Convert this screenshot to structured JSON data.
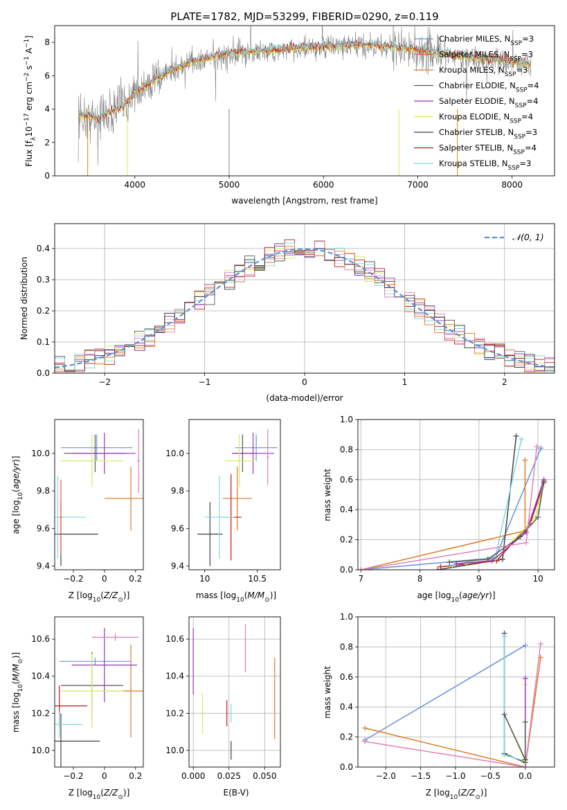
{
  "figure": {
    "title": "PLATE=1782, MJD=53299, FIBERID=0290, z=0.119"
  },
  "colors": {
    "Chabrier MILES": "#6a8fd8",
    "Salpeter MILES": "#e06040",
    "Kroupa MILES": "#e07b20",
    "Chabrier ELODIE": "#555555",
    "Salpeter ELODIE": "#9b30c0",
    "Kroupa ELODIE": "#d4e860",
    "Chabrier STELIB": "#404040",
    "Salpeter STELIB": "#c01818",
    "Kroupa STELIB": "#7fd8e0",
    "pink": "#e080b8",
    "data": "#808080",
    "normal": "#5b8fd8"
  },
  "chart_data": [
    {
      "type": "line",
      "title": "PLATE=1782, MJD=53299, FIBERID=0290, z=0.119",
      "xlabel": "wavelength [Angstrom, rest frame]",
      "ylabel": "Flux [f_λ 10^-17 erg cm^-2 s^-1 A^-1]",
      "xlim": [
        3150,
        8450
      ],
      "ylim": [
        0,
        9
      ],
      "xticks": [
        4000,
        5000,
        6000,
        7000,
        8000
      ],
      "yticks": [
        0,
        2,
        4,
        6,
        8
      ],
      "legend_position": "right",
      "legend": [
        {
          "label": "Chabrier MILES",
          "sub": "SSP",
          "n": "=3"
        },
        {
          "label": "Salpeter MILES",
          "sub": "SSP",
          "n": "=3"
        },
        {
          "label": "Kroupa MILES",
          "sub": "SSP",
          "n": "=3"
        },
        {
          "label": "Chabrier ELODIE",
          "sub": "SSP",
          "n": "=4"
        },
        {
          "label": "Salpeter ELODIE",
          "sub": "SSP",
          "n": "=4"
        },
        {
          "label": "Kroupa ELODIE",
          "sub": "SSP",
          "n": "=4"
        },
        {
          "label": "Chabrier STELIB",
          "sub": "SSP",
          "n": "=3"
        },
        {
          "label": "Salpeter STELIB",
          "sub": "SSP",
          "n": "=4"
        },
        {
          "label": "Kroupa STELIB",
          "sub": "SSP",
          "n": "=3"
        }
      ],
      "spectrum_continuum": [
        [
          3400,
          3.6
        ],
        [
          3600,
          3.4
        ],
        [
          3900,
          4.2
        ],
        [
          4000,
          5.0
        ],
        [
          4300,
          6.0
        ],
        [
          4600,
          6.8
        ],
        [
          5000,
          7.3
        ],
        [
          5500,
          7.5
        ],
        [
          6000,
          7.7
        ],
        [
          6500,
          7.8
        ],
        [
          7000,
          7.5
        ],
        [
          7500,
          7.1
        ],
        [
          8000,
          6.8
        ],
        [
          8200,
          6.7
        ]
      ]
    },
    {
      "type": "bar",
      "xlabel": "(data-model)/error",
      "ylabel": "Normed distribution",
      "xlim": [
        -2.5,
        2.5
      ],
      "ylim": [
        0,
        0.48
      ],
      "xticks": [
        -2,
        -1,
        0,
        1,
        2
      ],
      "yticks": [
        0.0,
        0.1,
        0.2,
        0.3,
        0.4
      ],
      "legend": "𝒩(0, 1)",
      "legend_position": "top-right",
      "bin_width": 0.1
    },
    {
      "type": "scatter",
      "xlabel": "Z [log₁₀(Z/Z⊙)]",
      "ylabel": "age  [log₁₀(age/yr)]",
      "xlim": [
        -0.32,
        0.25
      ],
      "ylim": [
        9.38,
        10.18
      ],
      "xticks": [
        -0.2,
        0.0,
        0.2
      ],
      "yticks": [
        9.4,
        9.6,
        9.8,
        10.0
      ],
      "points": [
        {
          "series": "Chabrier MILES",
          "x": -0.05,
          "y": 10.03,
          "xerr": 0.23,
          "yerr": 0.07
        },
        {
          "series": "Kroupa MILES",
          "x": 0.17,
          "y": 9.76,
          "xerr": 0.17,
          "yerr": 0.17
        },
        {
          "series": "Chabrier ELODIE",
          "x": -0.06,
          "y": 10.0,
          "xerr": 0.2,
          "yerr": 0.1
        },
        {
          "series": "Salpeter ELODIE",
          "x": 0.0,
          "y": 10.0,
          "xerr": 0.2,
          "yerr": 0.11
        },
        {
          "series": "Kroupa ELODIE",
          "x": -0.08,
          "y": 9.96,
          "xerr": 0.2,
          "yerr": 0.14
        },
        {
          "series": "Chabrier STELIB",
          "x": -0.28,
          "y": 9.57,
          "xerr": 0.24,
          "yerr": 0.17
        },
        {
          "series": "Kroupa STELIB",
          "x": -0.3,
          "y": 9.66,
          "xerr": 0.18,
          "yerr": 0.22
        },
        {
          "series": "pink",
          "x": 0.22,
          "y": 9.96,
          "xerr": 0.01,
          "yerr": 0.17
        },
        {
          "series": "Salpeter MILES",
          "x": -0.28,
          "y": 9.66,
          "xerr": 0.01,
          "yerr": 0.2
        }
      ]
    },
    {
      "type": "scatter",
      "xlabel": "mass [log₁₀(M/M⊙)]",
      "xlim": [
        9.85,
        10.72
      ],
      "ylim": [
        9.38,
        10.18
      ],
      "xticks": [
        10.0,
        10.5
      ],
      "yticks": [
        9.4,
        9.6,
        9.8,
        10.0
      ],
      "points": [
        {
          "series": "Chabrier MILES",
          "x": 10.49,
          "y": 10.03,
          "xerr": 0.2,
          "yerr": 0.07
        },
        {
          "series": "Kroupa MILES",
          "x": 10.31,
          "y": 9.76,
          "xerr": 0.14,
          "yerr": 0.17
        },
        {
          "series": "Chabrier ELODIE",
          "x": 10.36,
          "y": 10.0,
          "xerr": 0.1,
          "yerr": 0.1
        },
        {
          "series": "Salpeter ELODIE",
          "x": 10.46,
          "y": 10.0,
          "xerr": 0.2,
          "yerr": 0.11
        },
        {
          "series": "Kroupa ELODIE",
          "x": 10.33,
          "y": 9.96,
          "xerr": 0.14,
          "yerr": 0.14
        },
        {
          "series": "Chabrier STELIB",
          "x": 10.05,
          "y": 9.57,
          "xerr": 0.12,
          "yerr": 0.17
        },
        {
          "series": "Salpeter STELIB",
          "x": 10.25,
          "y": 9.66,
          "xerr": 0.1,
          "yerr": 0.23
        },
        {
          "series": "Kroupa STELIB",
          "x": 10.14,
          "y": 9.66,
          "xerr": 0.14,
          "yerr": 0.22
        },
        {
          "series": "pink",
          "x": 10.6,
          "y": 9.98,
          "xerr": 0.01,
          "yerr": 0.15
        }
      ]
    },
    {
      "type": "line",
      "xlabel": "age  [log₁₀(age/yr)]",
      "ylabel": "mass weight",
      "xlim": [
        6.95,
        10.28
      ],
      "ylim": [
        0,
        1.0
      ],
      "xticks": [
        7,
        8,
        9,
        10
      ],
      "yticks": [
        0.0,
        0.2,
        0.4,
        0.6,
        0.8,
        1.0
      ],
      "series": [
        {
          "name": "Chabrier MILES",
          "points": [
            [
              7.0,
              0.0
            ],
            [
              9.28,
              0.08
            ],
            [
              10.05,
              0.81
            ]
          ]
        },
        {
          "name": "Kroupa MILES",
          "points": [
            [
              7.0,
              0.0
            ],
            [
              9.78,
              0.26
            ],
            [
              9.78,
              0.73
            ]
          ]
        },
        {
          "name": "Chabrier STELIB",
          "points": [
            [
              8.3,
              0.0
            ],
            [
              9.4,
              0.07
            ],
            [
              9.63,
              0.89
            ]
          ]
        },
        {
          "name": "Salpeter STELIB",
          "points": [
            [
              8.35,
              0.02
            ],
            [
              9.3,
              0.06
            ],
            [
              9.87,
              0.31
            ],
            [
              10.1,
              0.58
            ]
          ]
        },
        {
          "name": "Kroupa STELIB",
          "points": [
            [
              8.55,
              0.03
            ],
            [
              9.28,
              0.09
            ],
            [
              9.72,
              0.87
            ]
          ]
        },
        {
          "name": "Kroupa ELODIE",
          "points": [
            [
              8.78,
              0.04
            ],
            [
              9.28,
              0.07
            ],
            [
              9.6,
              0.2
            ],
            [
              9.96,
              0.35
            ],
            [
              10.08,
              0.55
            ]
          ]
        },
        {
          "name": "Salpeter ELODIE",
          "points": [
            [
              8.62,
              0.04
            ],
            [
              9.22,
              0.06
            ],
            [
              9.8,
              0.25
            ],
            [
              10.1,
              0.6
            ]
          ]
        },
        {
          "name": "Chabrier ELODIE",
          "points": [
            [
              8.5,
              0.05
            ],
            [
              9.15,
              0.07
            ],
            [
              9.7,
              0.22
            ],
            [
              10.0,
              0.35
            ],
            [
              10.1,
              0.59
            ]
          ]
        },
        {
          "name": "pink",
          "points": [
            [
              7.0,
              0.0
            ],
            [
              9.8,
              0.18
            ],
            [
              9.98,
              0.82
            ]
          ]
        }
      ]
    },
    {
      "type": "scatter",
      "xlabel": "Z [log₁₀(Z/Z⊙)]",
      "ylabel": "mass [log₁₀(M/M⊙)]",
      "xlim": [
        -0.32,
        0.25
      ],
      "ylim": [
        9.91,
        10.72
      ],
      "xticks": [
        -0.2,
        0.0,
        0.2
      ],
      "yticks": [
        10.0,
        10.2,
        10.4,
        10.6
      ],
      "points": [
        {
          "series": "Chabrier MILES",
          "x": -0.06,
          "y": 10.48,
          "xerr": 0.23,
          "yerr": 0.02
        },
        {
          "series": "Kroupa MILES",
          "x": 0.17,
          "y": 10.32,
          "xerr": 0.15,
          "yerr": 0.25
        },
        {
          "series": "Chabrier ELODIE",
          "x": -0.08,
          "y": 10.35,
          "xerr": 0.2,
          "yerr": 0.18
        },
        {
          "series": "Salpeter ELODIE",
          "x": 0.0,
          "y": 10.46,
          "xerr": 0.21,
          "yerr": 0.2
        },
        {
          "series": "Kroupa ELODIE",
          "x": -0.08,
          "y": 10.32,
          "xerr": 0.2,
          "yerr": 0.2
        },
        {
          "series": "Chabrier STELIB",
          "x": -0.28,
          "y": 10.05,
          "xerr": 0.25,
          "yerr": 0.15
        },
        {
          "series": "Salpeter STELIB",
          "x": -0.29,
          "y": 10.24,
          "xerr": 0.18,
          "yerr": 0.11
        },
        {
          "series": "Kroupa STELIB",
          "x": -0.29,
          "y": 10.14,
          "xerr": 0.15,
          "yerr": 0.07
        },
        {
          "series": "pink",
          "x": 0.07,
          "y": 10.61,
          "xerr": 0.15,
          "yerr": 0.02
        }
      ]
    },
    {
      "type": "scatter",
      "xlabel": "E(B-V)",
      "xlim": [
        -0.003,
        0.061
      ],
      "ylim": [
        9.91,
        10.72
      ],
      "xticks": [
        0.0,
        0.025,
        0.05
      ],
      "xticklabels": [
        "0.000",
        "0.025",
        "0.050"
      ],
      "yticks": [
        10.0,
        10.2,
        10.4,
        10.6
      ],
      "points": [
        {
          "series": "Salpeter ELODIE",
          "x": 0.0,
          "y": 10.48,
          "yerr": 0.18
        },
        {
          "series": "Kroupa ELODIE",
          "x": 0.0065,
          "y": 10.2,
          "yerr": 0.11
        },
        {
          "series": "Salpeter STELIB",
          "x": 0.0235,
          "y": 10.2,
          "yerr": 0.07
        },
        {
          "series": "Chabrier STELIB",
          "x": 0.0265,
          "y": 10.0,
          "yerr": 0.05
        },
        {
          "series": "Kroupa STELIB",
          "x": 0.0265,
          "y": 10.2,
          "yerr": 0.05
        },
        {
          "series": "pink",
          "x": 0.0365,
          "y": 10.55,
          "yerr": 0.13
        },
        {
          "series": "Kroupa MILES",
          "x": 0.057,
          "y": 10.28,
          "yerr": 0.22
        }
      ]
    },
    {
      "type": "line",
      "xlabel": "Z [log₁₀(Z/Z⊙)]",
      "ylabel": "mass weight",
      "xlim": [
        -2.4,
        0.42
      ],
      "ylim": [
        0,
        1.0
      ],
      "xticks": [
        -2.0,
        -1.5,
        -1.0,
        -0.5,
        0.0
      ],
      "xticklabels": [
        "−2.0",
        "−1.5",
        "−1.0",
        "−0.5",
        "0.0"
      ],
      "yticks": [
        0.0,
        0.2,
        0.4,
        0.6,
        0.8,
        1.0
      ],
      "series": [
        {
          "name": "Chabrier MILES",
          "points": [
            [
              -2.3,
              0.18
            ],
            [
              0.0,
              0.81
            ]
          ]
        },
        {
          "name": "Kroupa MILES",
          "points": [
            [
              -2.3,
              0.26
            ],
            [
              0.0,
              0.0
            ],
            [
              0.22,
              0.73
            ]
          ]
        },
        {
          "name": "pink",
          "points": [
            [
              -2.3,
              0.17
            ],
            [
              0.0,
              0.0
            ],
            [
              0.22,
              0.82
            ]
          ]
        },
        {
          "name": "Chabrier STELIB",
          "points": [
            [
              -0.3,
              0.89
            ],
            [
              -0.3,
              0.09
            ],
            [
              0.0,
              0.03
            ]
          ]
        },
        {
          "name": "Kroupa STELIB",
          "points": [
            [
              -0.3,
              0.87
            ],
            [
              -0.3,
              0.08
            ],
            [
              0.0,
              0.04
            ]
          ]
        },
        {
          "name": "Kroupa ELODIE",
          "points": [
            [
              -0.3,
              0.35
            ],
            [
              0.0,
              0.04
            ],
            [
              0.0,
              0.55
            ]
          ]
        },
        {
          "name": "Salpeter ELODIE",
          "points": [
            [
              0.0,
              0.05
            ],
            [
              0.0,
              0.59
            ]
          ]
        },
        {
          "name": "Chabrier ELODIE",
          "points": [
            [
              -0.3,
              0.35
            ],
            [
              0.0,
              0.05
            ],
            [
              0.0,
              0.3
            ]
          ]
        }
      ]
    }
  ]
}
